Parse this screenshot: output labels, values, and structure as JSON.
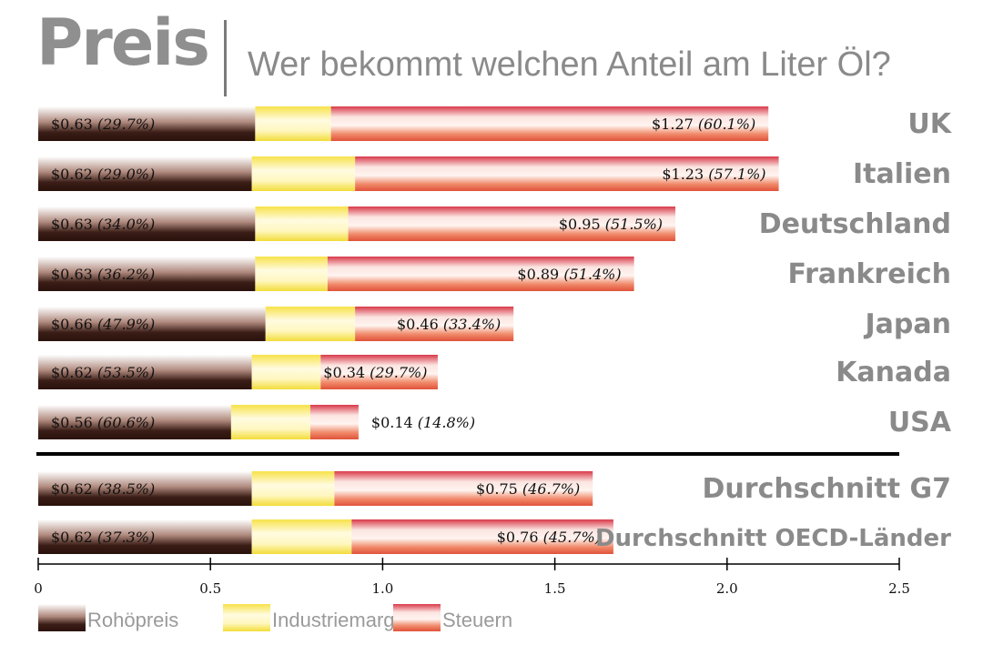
{
  "header": {
    "title": "Preis",
    "subtitle": "Wer bekommt welchen Anteil am Liter Öl?"
  },
  "chart_data": {
    "type": "bar",
    "orientation": "horizontal",
    "stacked": true,
    "title": "Preis",
    "subtitle": "Wer bekommt welchen Anteil am Liter Öl?",
    "xlim": [
      0,
      2.5
    ],
    "xticks": [
      0,
      0.5,
      1.0,
      1.5,
      2.0,
      2.5
    ],
    "xtick_labels": [
      "0",
      "0.5",
      "1.0",
      "1.5",
      "2.0",
      "2.5"
    ],
    "grid": false,
    "legend_position": "bottom-left",
    "colors": {
      "Rohöpreis": "#4a2a22",
      "Industriemarge": "#f3e34a",
      "Steuern": "#e0524a"
    },
    "categories": [
      "UK",
      "Italien",
      "Deutschland",
      "Frankreich",
      "Japan",
      "Kanada",
      "USA",
      "Durchschnitt G7",
      "Durchschnitt OECD-Länder"
    ],
    "separator_after": "USA",
    "series": [
      {
        "name": "Rohöpreis",
        "values": [
          0.63,
          0.62,
          0.63,
          0.63,
          0.66,
          0.62,
          0.56,
          0.62,
          0.62
        ],
        "labels": [
          "$0.63 (29.7%)",
          "$0.62 (29.0%)",
          "$0.63 (34.0%)",
          "$0.63 (36.2%)",
          "$0.66 (47.9%)",
          "$0.62 (53.5%)",
          "$0.56 (60.6%)",
          "$0.62 (38.5%)",
          "$0.62 (37.3%)"
        ]
      },
      {
        "name": "Industriemarge",
        "values": [
          0.22,
          0.3,
          0.27,
          0.21,
          0.26,
          0.2,
          0.23,
          0.24,
          0.29
        ]
      },
      {
        "name": "Steuern",
        "values": [
          1.27,
          1.23,
          0.95,
          0.89,
          0.46,
          0.34,
          0.14,
          0.75,
          0.76
        ],
        "labels": [
          "$1.27 (60.1%)",
          "$1.23 (57.1%)",
          "$0.95 (51.5%)",
          "$0.89 (51.4%)",
          "$0.46 (33.4%)",
          "$0.34 (29.7%)",
          "$0.14 (14.8%)",
          "$0.75 (46.7%)",
          "$0.76 (45.7%)"
        ]
      }
    ]
  }
}
